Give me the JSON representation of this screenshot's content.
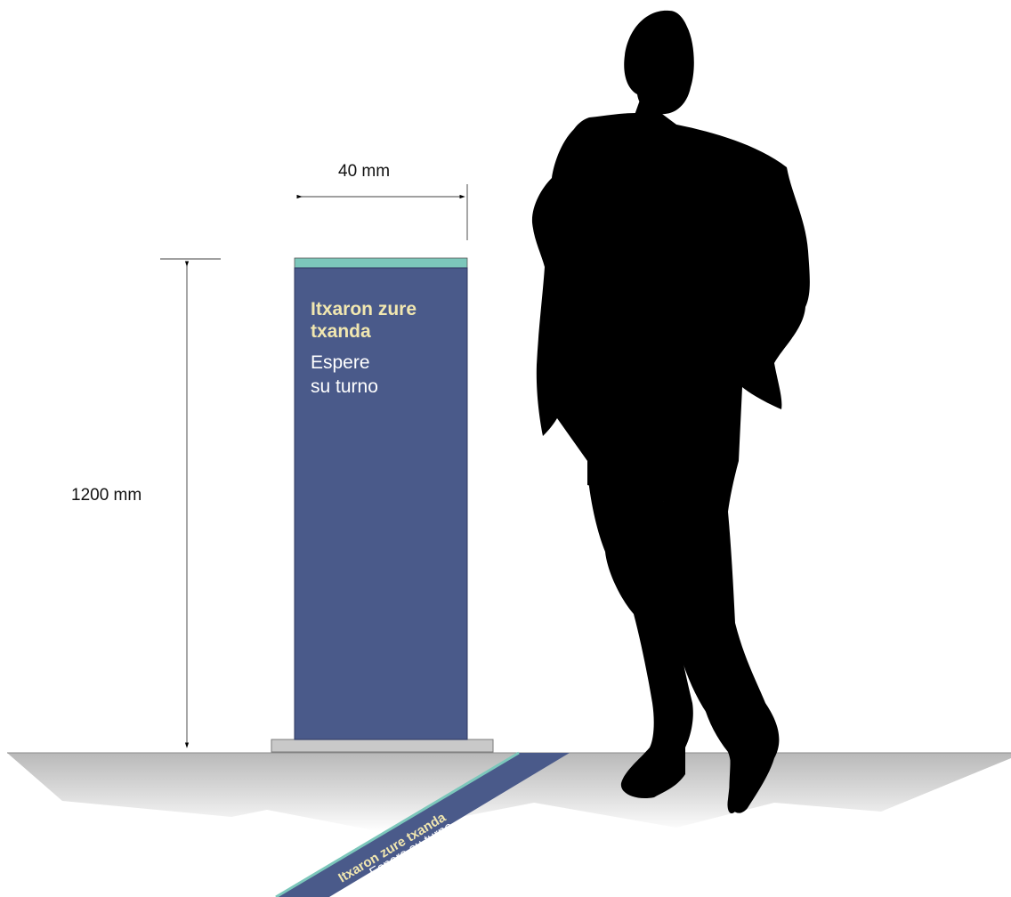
{
  "dimensions": {
    "width_label": "40 mm",
    "height_label": "1200 mm"
  },
  "sign": {
    "title_line1": "Itxaron zure",
    "title_line2": "txanda",
    "subtitle_line1": "Espere",
    "subtitle_line2": "su turno",
    "panel_color": "#4a5a8a",
    "top_strip_color": "#7cc7bb",
    "title_color": "#f1e7b0",
    "subtitle_color": "#ffffff",
    "base_color": "#c9c9c9"
  },
  "floor_strip": {
    "line1": "Itxaron zure txanda",
    "line2": "Espere su turno",
    "color": "#4a5a8a",
    "edge_color": "#7cc7bb"
  },
  "figure": {
    "icon": "person-silhouette-icon",
    "color": "#000000"
  }
}
